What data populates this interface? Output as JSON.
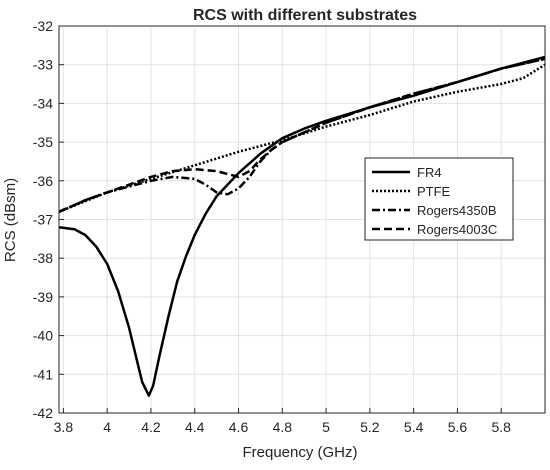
{
  "chart_data": {
    "type": "line",
    "title": "RCS with different substrates",
    "xlabel": "Frequency (GHz)",
    "ylabel": "RCS (dBsm)",
    "xlim": [
      3.78,
      6.0
    ],
    "ylim": [
      -42,
      -32
    ],
    "xticks": [
      "3.8",
      "4",
      "4.2",
      "4.4",
      "4.6",
      "4.8",
      "5",
      "5.2",
      "5.4",
      "5.6",
      "5.8"
    ],
    "xtick_values": [
      3.8,
      4.0,
      4.2,
      4.4,
      4.6,
      4.8,
      5.0,
      5.2,
      5.4,
      5.6,
      5.8
    ],
    "yticks": [
      "-32",
      "-33",
      "-34",
      "-35",
      "-36",
      "-37",
      "-38",
      "-39",
      "-40",
      "-41",
      "-42"
    ],
    "ytick_values": [
      -32,
      -33,
      -34,
      -35,
      -36,
      -37,
      -38,
      -39,
      -40,
      -41,
      -42
    ],
    "grid": true,
    "legend_position": "right-center",
    "series": [
      {
        "name": "FR4",
        "style": "solid",
        "color": "#000000",
        "x": [
          3.78,
          3.85,
          3.9,
          3.95,
          4.0,
          4.05,
          4.1,
          4.13,
          4.16,
          4.19,
          4.21,
          4.24,
          4.28,
          4.32,
          4.36,
          4.4,
          4.45,
          4.5,
          4.6,
          4.7,
          4.8,
          4.9,
          5.0,
          5.2,
          5.4,
          5.6,
          5.8,
          6.0
        ],
        "y": [
          -37.2,
          -37.25,
          -37.4,
          -37.7,
          -38.15,
          -38.85,
          -39.8,
          -40.5,
          -41.2,
          -41.55,
          -41.3,
          -40.5,
          -39.5,
          -38.6,
          -37.95,
          -37.4,
          -36.85,
          -36.4,
          -35.8,
          -35.3,
          -34.9,
          -34.65,
          -34.45,
          -34.1,
          -33.8,
          -33.45,
          -33.1,
          -32.8
        ]
      },
      {
        "name": "PTFE",
        "style": "dotted",
        "color": "#000000",
        "x": [
          3.78,
          4.0,
          4.2,
          4.4,
          4.6,
          4.8,
          5.0,
          5.2,
          5.4,
          5.6,
          5.8,
          5.9,
          6.0
        ],
        "y": [
          -36.8,
          -36.3,
          -35.95,
          -35.6,
          -35.25,
          -34.95,
          -34.6,
          -34.3,
          -33.95,
          -33.7,
          -33.5,
          -33.35,
          -33.0
        ]
      },
      {
        "name": "Rogers4350B",
        "style": "dashdot",
        "color": "#000000",
        "x": [
          3.78,
          3.9,
          4.0,
          4.1,
          4.2,
          4.3,
          4.4,
          4.45,
          4.5,
          4.55,
          4.6,
          4.65,
          4.7,
          4.75,
          4.8,
          5.0,
          5.2,
          5.4,
          5.6,
          5.8,
          6.0
        ],
        "y": [
          -36.8,
          -36.5,
          -36.3,
          -36.15,
          -36.0,
          -35.9,
          -35.95,
          -36.1,
          -36.3,
          -36.35,
          -36.2,
          -35.9,
          -35.5,
          -35.2,
          -35.0,
          -34.5,
          -34.1,
          -33.75,
          -33.45,
          -33.1,
          -32.85
        ]
      },
      {
        "name": "Rogers4003C",
        "style": "dashed",
        "color": "#000000",
        "x": [
          3.78,
          3.9,
          4.0,
          4.1,
          4.2,
          4.3,
          4.4,
          4.5,
          4.6,
          4.65,
          4.7,
          4.75,
          4.8,
          5.0,
          5.2,
          5.4,
          5.6,
          5.8,
          6.0
        ],
        "y": [
          -36.8,
          -36.5,
          -36.3,
          -36.1,
          -35.9,
          -35.75,
          -35.7,
          -35.75,
          -35.9,
          -35.75,
          -35.45,
          -35.2,
          -35.0,
          -34.5,
          -34.1,
          -33.75,
          -33.45,
          -33.1,
          -32.85
        ]
      }
    ]
  }
}
